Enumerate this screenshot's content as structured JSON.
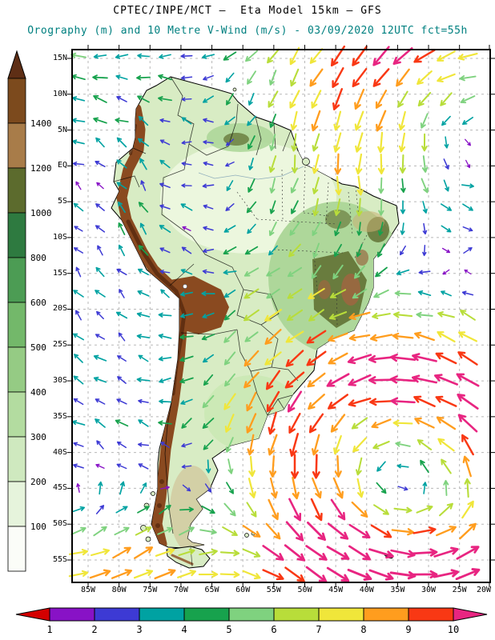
{
  "header": {
    "line1": "CPTEC/INPE/MCT —  Eta Model 15km — GFS",
    "line2": "Orography (m) and 10 Metre V-Wind (m/s) - 03/09/2020 12UTC fct=55h"
  },
  "colors": {
    "subtitle": "#008080",
    "grid": "#b8b8b8",
    "frame": "#000000",
    "land_base": "#d8ecc4",
    "amazon_light": "#ecf7de",
    "east_brazil_green": "#aed79a",
    "pampas_green": "#cce9b6",
    "patagonia_tan": "#d2c79c",
    "olive_highland": "#5d6c2e",
    "brown_highland": "#976940",
    "andes_brown": "#8a4a20",
    "andes_dark": "#5c2c10",
    "river": "#336699",
    "lake": "#ffffff"
  },
  "axes": {
    "lat_labels": [
      "15N",
      "10N",
      "5N",
      "EQ",
      "5S",
      "10S",
      "15S",
      "20S",
      "25S",
      "30S",
      "35S",
      "40S",
      "45S",
      "50S",
      "55S"
    ],
    "lon_labels": [
      "85W",
      "80W",
      "75W",
      "70W",
      "65W",
      "60W",
      "55W",
      "50W",
      "45W",
      "40W",
      "35W",
      "30W",
      "25W",
      "20W"
    ]
  },
  "orography_legend": {
    "unit": "m",
    "arrow_color": "#5e2e15",
    "segment_colors_top_to_bottom": [
      "#7c4a1d",
      "#a87c49",
      "#5c6b2d",
      "#2e7a40",
      "#4c9c54",
      "#73b86a",
      "#95cb84",
      "#b3dca0",
      "#cfe9bf",
      "#e6f4dc",
      "#fbfdf8"
    ],
    "tick_labels": [
      "1400",
      "1200",
      "1000",
      "800",
      "600",
      "500",
      "400",
      "300",
      "200",
      "100"
    ]
  },
  "wind_legend": {
    "unit": "m/s",
    "left_arrow_color": "#d40000",
    "segment_colors": [
      "#8812c6",
      "#3d3ad4",
      "#00a2a2",
      "#17a24d",
      "#7fd27f",
      "#b8dd3a",
      "#f0e63a",
      "#ff9d1e",
      "#f93814"
    ],
    "right_arrow_color": "#e82581",
    "arrow_speed_colors": [
      "#8812c6",
      "#3d3ad4",
      "#00a2a2",
      "#17a24d",
      "#7fd27f",
      "#b8dd3a",
      "#f0e63a",
      "#ff9d1e",
      "#f93814",
      "#e82581"
    ],
    "tick_labels": [
      "1",
      "2",
      "3",
      "4",
      "5",
      "6",
      "7",
      "8",
      "9",
      "10"
    ]
  }
}
